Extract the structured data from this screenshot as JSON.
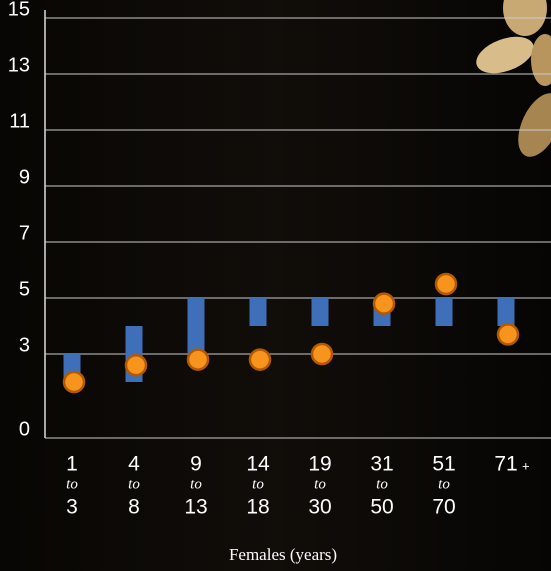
{
  "chart_data": {
    "type": "range-dot",
    "x_label": "Females (years)",
    "categories": [
      [
        "1",
        "to",
        "3"
      ],
      [
        "4",
        "to",
        "8"
      ],
      [
        "9",
        "to",
        "13"
      ],
      [
        "14",
        "to",
        "18"
      ],
      [
        "19",
        "to",
        "30"
      ],
      [
        "31",
        "to",
        "50"
      ],
      [
        "51",
        "to",
        "70"
      ],
      [
        "71",
        "+"
      ]
    ],
    "ranges": [
      [
        2,
        3
      ],
      [
        2,
        4
      ],
      [
        3,
        5
      ],
      [
        4,
        5
      ],
      [
        4,
        5
      ],
      [
        4,
        5
      ],
      [
        4,
        5
      ],
      [
        4,
        5
      ]
    ],
    "range_color": "#3f6fb8",
    "points": [
      2,
      2.6,
      2.8,
      2.8,
      3,
      4.8,
      5.5,
      3.7
    ],
    "point_color": "#f7941d",
    "ylim": [
      0,
      15
    ],
    "yticks": [
      0,
      3,
      5,
      7,
      9,
      11,
      13,
      15
    ],
    "grid": true
  }
}
